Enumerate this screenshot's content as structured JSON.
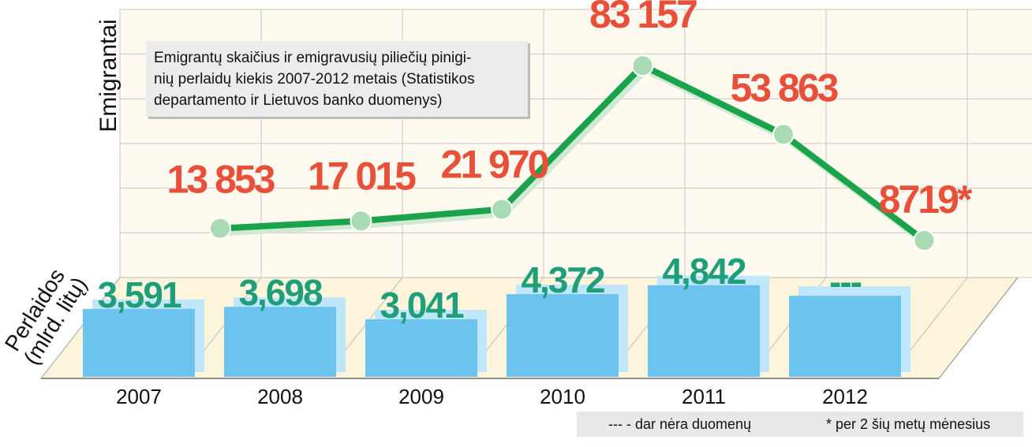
{
  "chart_data": {
    "type": "bar+line",
    "categories": [
      "2007",
      "2008",
      "2009",
      "2010",
      "2011",
      "2012"
    ],
    "line_series": {
      "name": "Emigrantai",
      "values": [
        13853,
        17015,
        21970,
        83157,
        53863,
        8719
      ],
      "labels": [
        "13 853",
        "17 015",
        "21 970",
        "83 157",
        "53 863",
        "8719*"
      ],
      "color": "#1aa34a"
    },
    "bar_series": {
      "name": "Perlaidos (mlrd. litų)",
      "values": [
        3.591,
        3.698,
        3.041,
        4.372,
        4.842,
        null
      ],
      "labels": [
        "3,591",
        "3,698",
        "3,041",
        "4,372",
        "4,842",
        "---"
      ],
      "color": "#6cc4ee"
    },
    "line_axis_label": "Emigrantai",
    "bar_axis_label_line1": "Perlaidos",
    "bar_axis_label_line2": "(mlrd. litų)",
    "title": "Emigrantų skaičius ir emigravusių piliečių pinigi- nių perlaidų kiekis 2007-2012 metais (Statistikos departamento ir Lietuvos banko duomenys)",
    "title_lines": [
      "Emigrantų skaičius ir emigravusių piliečių pinigi-",
      "nių perlaidų kiekis 2007-2012 metais (Statistikos",
      "departamento ir Lietuvos banko duomenys)"
    ],
    "footnotes": {
      "no_data": "---  - dar nėra duomenų",
      "asterisk": "* per 2 šių metų mėnesius"
    },
    "colors": {
      "line_label": "#e8503a",
      "bar_label": "#1f9e7a",
      "floor": "#fdf4dc",
      "grid": "#c7c7c7"
    },
    "grid": true
  }
}
